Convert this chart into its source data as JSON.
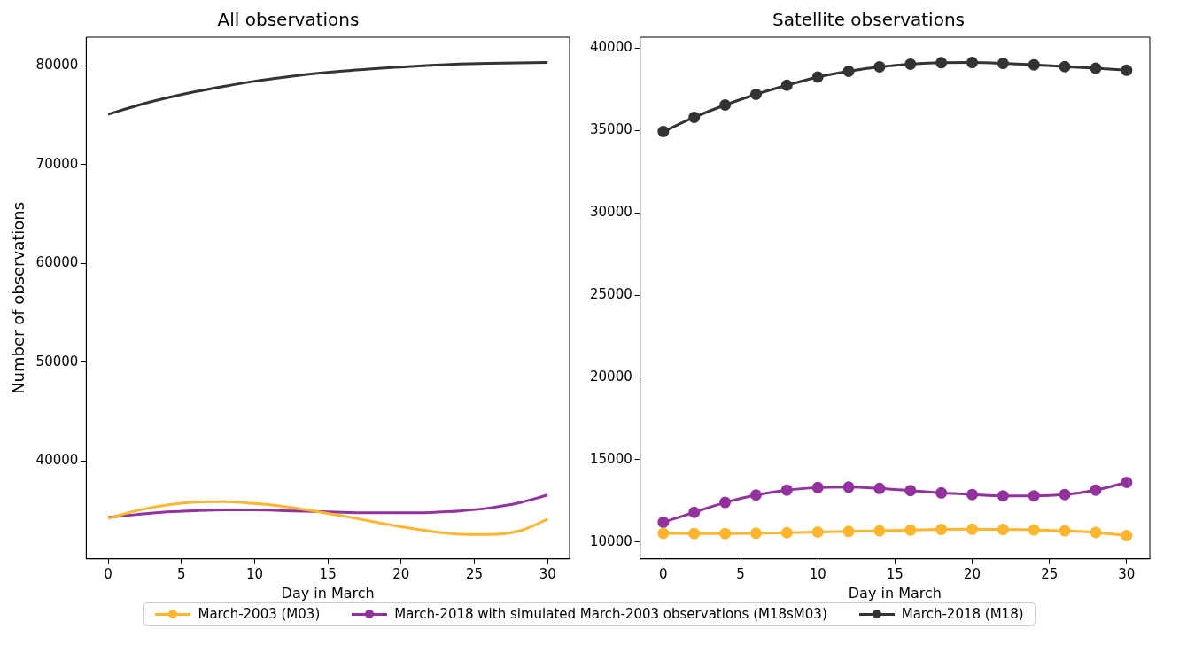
{
  "chart_data": [
    {
      "type": "line",
      "title": "All observations",
      "xlabel": "Day in March",
      "ylabel": "Number of observations",
      "x": [
        0,
        2,
        4,
        6,
        8,
        10,
        12,
        14,
        16,
        18,
        20,
        22,
        24,
        26,
        28,
        30
      ],
      "xlim": [
        -1.5,
        31.5
      ],
      "xticks": [
        0,
        5,
        10,
        15,
        20,
        25,
        30
      ],
      "ylim": [
        30100,
        82900
      ],
      "yticks": [
        40000,
        50000,
        60000,
        70000,
        80000
      ],
      "grid": false,
      "legend": "bottom",
      "marker": "none",
      "series": [
        {
          "name": "March-2003 (M03)",
          "color": "#ffb52e",
          "values": [
            34200,
            35000,
            35550,
            35850,
            35880,
            35700,
            35400,
            34950,
            34450,
            33900,
            33350,
            32900,
            32600,
            32570,
            32900,
            34100
          ]
        },
        {
          "name": "March-2018 with simulated March-2003 observations (M18sM03)",
          "color": "#93329e",
          "values": [
            34300,
            34600,
            34850,
            34980,
            35050,
            35050,
            34980,
            34900,
            34820,
            34760,
            34760,
            34800,
            34950,
            35250,
            35750,
            36560
          ]
        },
        {
          "name": "March-2018 (M18)",
          "color": "#333333",
          "values": [
            75100,
            76000,
            76750,
            77400,
            77950,
            78450,
            78850,
            79200,
            79480,
            79700,
            79880,
            80050,
            80180,
            80260,
            80310,
            80340
          ]
        }
      ]
    },
    {
      "type": "line",
      "title": "Satellite observations",
      "xlabel": "Day in March",
      "x": [
        0,
        2,
        4,
        6,
        8,
        10,
        12,
        14,
        16,
        18,
        20,
        22,
        24,
        26,
        28,
        30
      ],
      "xlim": [
        -1.5,
        31.5
      ],
      "xticks": [
        0,
        5,
        10,
        15,
        20,
        25,
        30
      ],
      "ylim": [
        8970,
        40670
      ],
      "yticks": [
        10000,
        15000,
        20000,
        25000,
        30000,
        35000,
        40000
      ],
      "grid": false,
      "marker": "circle",
      "series": [
        {
          "color": "#ffb52e",
          "values": [
            10520,
            10510,
            10510,
            10530,
            10560,
            10600,
            10640,
            10680,
            10720,
            10760,
            10770,
            10760,
            10730,
            10680,
            10580,
            10380
          ]
        },
        {
          "color": "#93329e",
          "values": [
            11200,
            11800,
            12400,
            12850,
            13150,
            13300,
            13330,
            13250,
            13120,
            12980,
            12880,
            12800,
            12800,
            12880,
            13150,
            13620
          ]
        },
        {
          "color": "#333333",
          "values": [
            34940,
            35800,
            36550,
            37200,
            37750,
            38250,
            38600,
            38870,
            39030,
            39120,
            39130,
            39080,
            38990,
            38880,
            38780,
            38660
          ]
        }
      ]
    }
  ]
}
